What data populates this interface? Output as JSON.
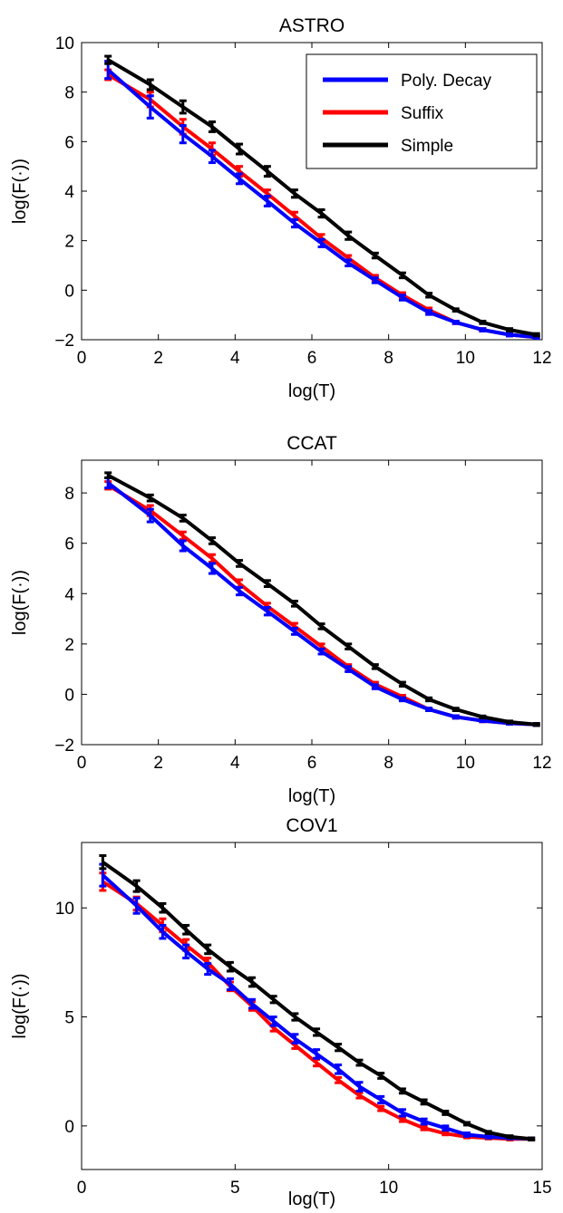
{
  "chart_data": [
    {
      "type": "line",
      "title": "ASTRO",
      "xlabel": "log(T)",
      "ylabel": "log(F(·))",
      "xlim": [
        0,
        12
      ],
      "ylim": [
        -2,
        10
      ],
      "xticks": [
        0,
        2,
        4,
        6,
        8,
        10,
        12
      ],
      "yticks": [
        -2,
        0,
        2,
        4,
        6,
        8,
        10
      ],
      "legend": {
        "placement": "top-right",
        "entries": [
          "Poly. Decay",
          "Suffix",
          "Simple"
        ]
      },
      "grid": false,
      "x": [
        0.69,
        1.79,
        2.64,
        3.4,
        4.11,
        4.84,
        5.55,
        6.25,
        6.95,
        7.65,
        8.36,
        9.05,
        9.75,
        10.45,
        11.15,
        11.85
      ],
      "series": [
        {
          "name": "Poly. Decay",
          "color": "#0000ff",
          "values": [
            8.9,
            7.4,
            6.3,
            5.4,
            4.5,
            3.6,
            2.7,
            1.9,
            1.1,
            0.4,
            -0.3,
            -0.9,
            -1.3,
            -1.6,
            -1.8,
            -1.9
          ],
          "errors": [
            0.35,
            0.45,
            0.35,
            0.25,
            0.2,
            0.2,
            0.15,
            0.15,
            0.12,
            0.1,
            0.1,
            0.08,
            0.05,
            0.05,
            0.05,
            0.05
          ]
        },
        {
          "name": "Suffix",
          "color": "#ff0000",
          "values": [
            8.7,
            7.7,
            6.6,
            5.7,
            4.8,
            3.9,
            3.0,
            2.1,
            1.3,
            0.5,
            -0.2,
            -0.8,
            -1.3,
            -1.6,
            -1.8,
            -1.9
          ],
          "errors": [
            0.2,
            0.3,
            0.3,
            0.25,
            0.2,
            0.15,
            0.15,
            0.15,
            0.1,
            0.1,
            0.1,
            0.08,
            0.05,
            0.05,
            0.05,
            0.05
          ]
        },
        {
          "name": "Simple",
          "color": "#000000",
          "values": [
            9.3,
            8.3,
            7.4,
            6.6,
            5.7,
            4.8,
            3.9,
            3.1,
            2.2,
            1.4,
            0.6,
            -0.2,
            -0.8,
            -1.3,
            -1.6,
            -1.8
          ],
          "errors": [
            0.15,
            0.2,
            0.25,
            0.2,
            0.2,
            0.2,
            0.15,
            0.15,
            0.15,
            0.1,
            0.1,
            0.08,
            0.05,
            0.05,
            0.05,
            0.05
          ]
        }
      ]
    },
    {
      "type": "line",
      "title": "CCAT",
      "xlabel": "log(T)",
      "ylabel": "log(F(·))",
      "xlim": [
        0,
        12
      ],
      "ylim": [
        -2,
        9.3
      ],
      "xticks": [
        0,
        2,
        4,
        6,
        8,
        10,
        12
      ],
      "yticks": [
        -2,
        0,
        2,
        4,
        6,
        8
      ],
      "grid": false,
      "x": [
        0.69,
        1.79,
        2.64,
        3.4,
        4.11,
        4.84,
        5.55,
        6.25,
        6.95,
        7.65,
        8.36,
        9.05,
        9.75,
        10.45,
        11.15,
        11.85
      ],
      "series": [
        {
          "name": "Poly. Decay",
          "color": "#0000ff",
          "values": [
            8.4,
            7.1,
            5.9,
            5.0,
            4.1,
            3.3,
            2.5,
            1.7,
            1.0,
            0.3,
            -0.2,
            -0.6,
            -0.9,
            -1.05,
            -1.15,
            -1.2
          ],
          "errors": [
            0.2,
            0.25,
            0.2,
            0.2,
            0.15,
            0.15,
            0.12,
            0.1,
            0.1,
            0.08,
            0.06,
            0.05,
            0.05,
            0.04,
            0.04,
            0.04
          ]
        },
        {
          "name": "Suffix",
          "color": "#ff0000",
          "values": [
            8.3,
            7.3,
            6.3,
            5.4,
            4.4,
            3.5,
            2.7,
            1.9,
            1.1,
            0.4,
            -0.1,
            -0.6,
            -0.9,
            -1.05,
            -1.15,
            -1.2
          ],
          "errors": [
            0.15,
            0.2,
            0.15,
            0.15,
            0.15,
            0.12,
            0.12,
            0.1,
            0.08,
            0.08,
            0.06,
            0.05,
            0.05,
            0.04,
            0.04,
            0.04
          ]
        },
        {
          "name": "Simple",
          "color": "#000000",
          "values": [
            8.7,
            7.8,
            7.0,
            6.1,
            5.2,
            4.4,
            3.6,
            2.7,
            1.9,
            1.1,
            0.4,
            -0.2,
            -0.6,
            -0.9,
            -1.1,
            -1.2
          ],
          "errors": [
            0.1,
            0.12,
            0.12,
            0.12,
            0.12,
            0.12,
            0.1,
            0.1,
            0.1,
            0.08,
            0.08,
            0.06,
            0.05,
            0.04,
            0.04,
            0.04
          ]
        }
      ]
    },
    {
      "type": "line",
      "title": "COV1",
      "xlabel": "log(T)",
      "ylabel": "log(F(·))",
      "xlim": [
        0,
        15
      ],
      "ylim": [
        -2,
        13
      ],
      "xticks": [
        0,
        5,
        10,
        15
      ],
      "yticks": [
        0,
        5,
        10
      ],
      "grid": false,
      "x": [
        0.69,
        1.79,
        2.64,
        3.4,
        4.11,
        4.84,
        5.55,
        6.25,
        6.95,
        7.65,
        8.36,
        9.05,
        9.75,
        10.45,
        11.15,
        11.85,
        12.55,
        13.25,
        13.95,
        14.65
      ],
      "series": [
        {
          "name": "Poly. Decay",
          "color": "#0000ff",
          "values": [
            11.5,
            10.1,
            8.9,
            8.0,
            7.2,
            6.5,
            5.6,
            4.8,
            4.0,
            3.3,
            2.6,
            1.8,
            1.2,
            0.6,
            0.2,
            -0.1,
            -0.4,
            -0.5,
            -0.55,
            -0.6
          ],
          "errors": [
            0.5,
            0.35,
            0.3,
            0.3,
            0.25,
            0.25,
            0.2,
            0.2,
            0.2,
            0.2,
            0.2,
            0.2,
            0.15,
            0.15,
            0.12,
            0.1,
            0.08,
            0.06,
            0.05,
            0.05
          ]
        },
        {
          "name": "Suffix",
          "color": "#ff0000",
          "values": [
            11.2,
            10.2,
            9.2,
            8.3,
            7.5,
            6.4,
            5.5,
            4.5,
            3.7,
            2.9,
            2.1,
            1.4,
            0.8,
            0.3,
            -0.1,
            -0.35,
            -0.5,
            -0.55,
            -0.6,
            -0.6
          ],
          "errors": [
            0.4,
            0.3,
            0.3,
            0.25,
            0.2,
            0.2,
            0.2,
            0.15,
            0.15,
            0.15,
            0.12,
            0.12,
            0.1,
            0.1,
            0.08,
            0.06,
            0.05,
            0.05,
            0.05,
            0.05
          ]
        },
        {
          "name": "Simple",
          "color": "#000000",
          "values": [
            12.1,
            11.0,
            10.0,
            9.0,
            8.1,
            7.3,
            6.6,
            5.8,
            5.0,
            4.3,
            3.6,
            2.9,
            2.3,
            1.6,
            1.1,
            0.6,
            0.1,
            -0.3,
            -0.5,
            -0.6
          ],
          "errors": [
            0.3,
            0.25,
            0.2,
            0.2,
            0.2,
            0.2,
            0.2,
            0.15,
            0.15,
            0.15,
            0.15,
            0.12,
            0.12,
            0.1,
            0.1,
            0.08,
            0.06,
            0.05,
            0.05,
            0.05
          ]
        }
      ]
    }
  ]
}
